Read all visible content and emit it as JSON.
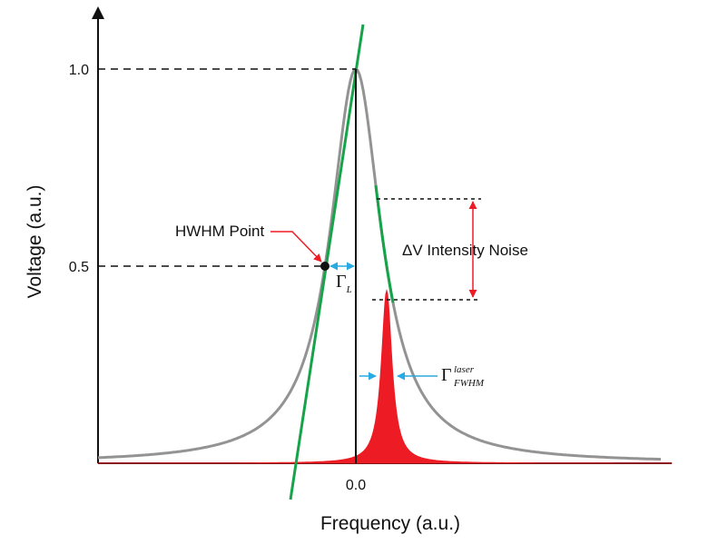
{
  "axes": {
    "xlabel": "Frequency (a.u.)",
    "ylabel": "Voltage (a.u.)",
    "yticks": [
      "1.0",
      "0.5"
    ],
    "xtick": "0.0"
  },
  "annotations": {
    "hwhm": "HWHM Point",
    "noise": "ΔV Intensity Noise",
    "gamma_l_symbol": "Γ",
    "gamma_l_sub": "L",
    "gamma_laser_symbol": "Γ",
    "gamma_laser_sup": "laser",
    "gamma_laser_sub": "FWHM"
  },
  "colors": {
    "lorentzian": "#939393",
    "slope_line": "#16a34a",
    "laser": "#ed1c24",
    "arrow_blue": "#29abe2",
    "arrow_red": "#ed1c24",
    "axis": "#111111"
  }
}
